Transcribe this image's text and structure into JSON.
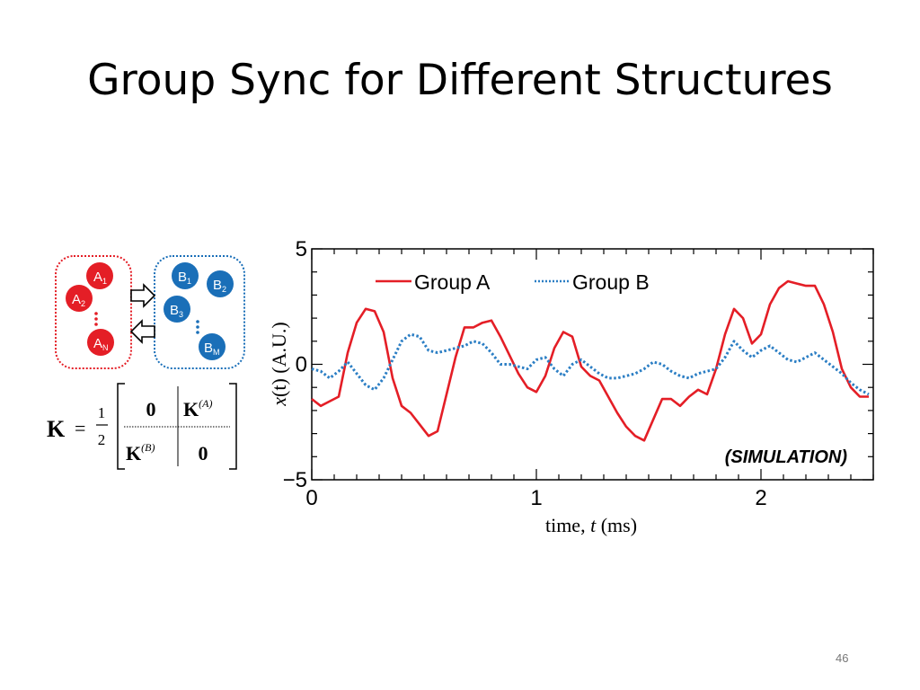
{
  "slide": {
    "title": "Group Sync for Different Structures",
    "page_number": "46"
  },
  "diagram": {
    "group_a": {
      "color": "#e41e26",
      "nodes": [
        {
          "base": "A",
          "sub": "1"
        },
        {
          "base": "A",
          "sub": "2"
        },
        {
          "base": "A",
          "sub": "N"
        }
      ]
    },
    "group_b": {
      "color": "#1a6fb8",
      "nodes": [
        {
          "base": "B",
          "sub": "1"
        },
        {
          "base": "B",
          "sub": "2"
        },
        {
          "base": "B",
          "sub": "3"
        },
        {
          "base": "B",
          "sub": "M"
        }
      ]
    },
    "formula": {
      "lhs": "K",
      "equals": "=",
      "frac_num": "1",
      "frac_den": "2",
      "top_left": "0",
      "top_right_base": "K",
      "top_right_sup": "(A)",
      "bottom_left_base": "K",
      "bottom_left_sup": "(B)",
      "bottom_right": "0"
    }
  },
  "chart_data": {
    "type": "line",
    "xlabel_prefix": "time, ",
    "xlabel_var": "t",
    "xlabel_suffix": " (ms)",
    "ylabel_var": "x",
    "ylabel_arg": "(t)",
    "ylabel_units": " (A.U.)",
    "xlim": [
      0,
      2.5
    ],
    "ylim": [
      -5,
      5
    ],
    "xticks": [
      0,
      1,
      2
    ],
    "yticks": [
      -5,
      0,
      5
    ],
    "xtick_labels": [
      "0",
      "1",
      "2"
    ],
    "ytick_labels": [
      "−5",
      "0",
      "5"
    ],
    "legend_position": "top",
    "annotation": "(SIMULATION)",
    "series": [
      {
        "name": "Group A",
        "color": "#e41e26",
        "style": "solid",
        "x": [
          0,
          0.04,
          0.08,
          0.12,
          0.16,
          0.2,
          0.24,
          0.28,
          0.32,
          0.36,
          0.4,
          0.44,
          0.48,
          0.52,
          0.56,
          0.6,
          0.64,
          0.68,
          0.72,
          0.76,
          0.8,
          0.84,
          0.88,
          0.92,
          0.96,
          1.0,
          1.04,
          1.08,
          1.12,
          1.16,
          1.2,
          1.24,
          1.28,
          1.32,
          1.36,
          1.4,
          1.44,
          1.48,
          1.52,
          1.56,
          1.6,
          1.64,
          1.68,
          1.72,
          1.76,
          1.8,
          1.84,
          1.88,
          1.92,
          1.96,
          2.0,
          2.04,
          2.08,
          2.12,
          2.16,
          2.2,
          2.24,
          2.28,
          2.32,
          2.36,
          2.4,
          2.44,
          2.48
        ],
        "y": [
          -1.5,
          -1.8,
          -1.6,
          -1.4,
          0.5,
          1.8,
          2.4,
          2.3,
          1.4,
          -0.6,
          -1.8,
          -2.1,
          -2.6,
          -3.1,
          -2.9,
          -1.3,
          0.3,
          1.6,
          1.6,
          1.8,
          1.9,
          1.2,
          0.4,
          -0.4,
          -1.0,
          -1.2,
          -0.5,
          0.7,
          1.4,
          1.2,
          -0.1,
          -0.5,
          -0.7,
          -1.4,
          -2.1,
          -2.7,
          -3.1,
          -3.3,
          -2.4,
          -1.5,
          -1.5,
          -1.8,
          -1.4,
          -1.1,
          -1.3,
          -0.2,
          1.3,
          2.4,
          2.0,
          0.9,
          1.3,
          2.6,
          3.3,
          3.6,
          3.5,
          3.4,
          3.4,
          2.6,
          1.4,
          -0.2,
          -1.0,
          -1.4,
          -1.4
        ]
      },
      {
        "name": "Group B",
        "color": "#2b7ec4",
        "style": "dotted",
        "x": [
          0,
          0.04,
          0.08,
          0.12,
          0.16,
          0.2,
          0.24,
          0.28,
          0.32,
          0.36,
          0.4,
          0.44,
          0.48,
          0.52,
          0.56,
          0.6,
          0.64,
          0.68,
          0.72,
          0.76,
          0.8,
          0.84,
          0.88,
          0.92,
          0.96,
          1.0,
          1.04,
          1.08,
          1.12,
          1.16,
          1.2,
          1.24,
          1.28,
          1.32,
          1.36,
          1.4,
          1.44,
          1.48,
          1.52,
          1.56,
          1.6,
          1.64,
          1.68,
          1.72,
          1.76,
          1.8,
          1.84,
          1.88,
          1.92,
          1.96,
          2.0,
          2.04,
          2.08,
          2.12,
          2.16,
          2.2,
          2.24,
          2.28,
          2.32,
          2.36,
          2.4,
          2.44,
          2.48
        ],
        "y": [
          -0.2,
          -0.3,
          -0.6,
          -0.3,
          0.1,
          -0.4,
          -0.9,
          -1.1,
          -0.6,
          0.2,
          1.0,
          1.3,
          1.2,
          0.6,
          0.5,
          0.6,
          0.7,
          0.8,
          1.0,
          0.9,
          0.5,
          0.0,
          0.0,
          -0.1,
          -0.2,
          0.2,
          0.3,
          -0.2,
          -0.5,
          0.0,
          0.2,
          -0.1,
          -0.4,
          -0.6,
          -0.6,
          -0.5,
          -0.4,
          -0.2,
          0.1,
          0.0,
          -0.3,
          -0.5,
          -0.6,
          -0.4,
          -0.3,
          -0.2,
          0.3,
          1.0,
          0.6,
          0.3,
          0.6,
          0.8,
          0.5,
          0.2,
          0.1,
          0.3,
          0.5,
          0.2,
          -0.1,
          -0.4,
          -0.8,
          -1.1,
          -1.3
        ]
      }
    ]
  }
}
